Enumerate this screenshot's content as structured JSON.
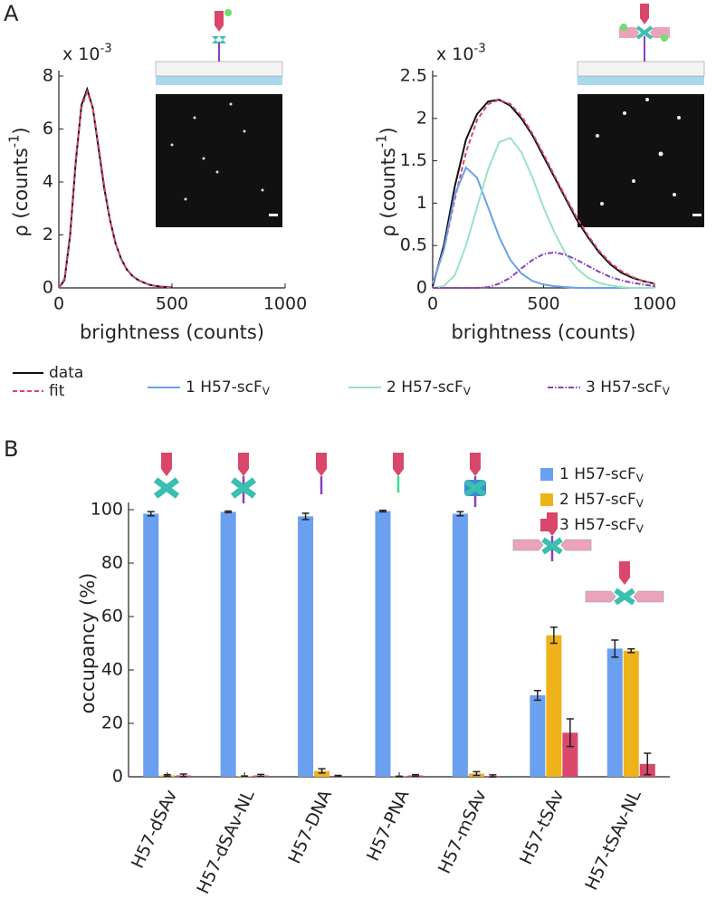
{
  "panel_labels": [
    "A",
    "B"
  ],
  "chart_data": [
    {
      "type": "line",
      "multiplier": "x 10-3",
      "xlabel": "brightness (counts)",
      "ylabel": "ρ (counts-1)",
      "xlim": [
        0,
        1000
      ],
      "xticks": [
        0,
        500,
        1000
      ],
      "ylim": [
        0,
        8
      ],
      "yticks": [
        0,
        2,
        4,
        6,
        8
      ],
      "x": [
        0,
        25,
        50,
        75,
        100,
        125,
        150,
        175,
        200,
        225,
        250,
        275,
        300,
        325,
        350,
        375,
        400,
        425,
        450,
        475,
        500
      ],
      "series": [
        {
          "name": "data",
          "color": "#111111",
          "line_style": "solid",
          "values": [
            0,
            0.3,
            2.0,
            4.8,
            6.9,
            7.5,
            6.8,
            5.3,
            3.8,
            2.6,
            1.7,
            1.1,
            0.7,
            0.45,
            0.3,
            0.2,
            0.12,
            0.08,
            0.05,
            0.03,
            0.02
          ]
        },
        {
          "name": "fit",
          "color": "#d9476b",
          "line_style": "dashed",
          "values": [
            0,
            0.35,
            2.1,
            4.9,
            6.8,
            7.4,
            6.8,
            5.4,
            3.9,
            2.6,
            1.7,
            1.1,
            0.7,
            0.45,
            0.3,
            0.2,
            0.12,
            0.08,
            0.05,
            0.03,
            0.02
          ]
        }
      ]
    },
    {
      "type": "line",
      "multiplier": "x 10-3",
      "xlabel": "brightness (counts)",
      "ylabel": "ρ (counts-1)",
      "xlim": [
        0,
        1000
      ],
      "xticks": [
        0,
        500,
        1000
      ],
      "ylim": [
        0,
        2.5
      ],
      "yticks": [
        0,
        0.5,
        1,
        1.5,
        2,
        2.5
      ],
      "x": [
        0,
        50,
        100,
        150,
        200,
        250,
        300,
        350,
        400,
        450,
        500,
        550,
        600,
        650,
        700,
        750,
        800,
        850,
        900,
        950,
        1000
      ],
      "series": [
        {
          "color": "#111111",
          "line_style": "solid",
          "values": [
            0.02,
            0.5,
            1.2,
            1.75,
            2.05,
            2.2,
            2.22,
            2.15,
            2.0,
            1.8,
            1.55,
            1.3,
            1.05,
            0.8,
            0.6,
            0.42,
            0.28,
            0.18,
            0.12,
            0.08,
            0.05
          ]
        },
        {
          "color": "#d9476b",
          "line_style": "dashed",
          "values": [
            0.05,
            0.45,
            1.05,
            1.6,
            1.98,
            2.17,
            2.22,
            2.17,
            2.03,
            1.82,
            1.58,
            1.32,
            1.07,
            0.83,
            0.62,
            0.44,
            0.3,
            0.2,
            0.13,
            0.08,
            0.05
          ]
        },
        {
          "name": "1 H57-scFV",
          "color": "#6b9ff0",
          "line_style": "solid",
          "values": [
            0.05,
            0.45,
            1.1,
            1.42,
            1.3,
            0.95,
            0.6,
            0.33,
            0.17,
            0.08,
            0.04,
            0.02,
            0.01,
            0,
            0,
            0,
            0,
            0,
            0,
            0,
            0
          ]
        },
        {
          "name": "2 H57-scFV",
          "color": "#98e3c0",
          "line_style": "solid",
          "values": [
            0,
            0.02,
            0.15,
            0.5,
            0.95,
            1.4,
            1.72,
            1.77,
            1.6,
            1.3,
            0.95,
            0.65,
            0.4,
            0.23,
            0.12,
            0.06,
            0.03,
            0.01,
            0,
            0,
            0
          ]
        },
        {
          "name": "3 H57-scFV",
          "color": "#8a3fc4",
          "line_style": "dashdot",
          "values": [
            0,
            0,
            0,
            0,
            0,
            0.01,
            0.05,
            0.12,
            0.23,
            0.33,
            0.4,
            0.42,
            0.39,
            0.33,
            0.26,
            0.19,
            0.13,
            0.09,
            0.06,
            0.04,
            0.02
          ]
        }
      ]
    },
    {
      "type": "bar",
      "ylabel": "occupancy (%)",
      "ylim": [
        0,
        100
      ],
      "yticks": [
        0,
        20,
        40,
        60,
        80,
        100
      ],
      "categories": [
        "H57-dSAv",
        "H57-dSAv-NL",
        "H57-DNA",
        "H57-PNA",
        "H57-mSAv",
        "H57-tSAv",
        "H57-tSAv-NL"
      ],
      "series": [
        {
          "name": "1 H57-scFV",
          "color": "#6b9ff0",
          "values": [
            98.5,
            99.2,
            97.5,
            99.5,
            98.5,
            30.5,
            48
          ],
          "errors": [
            0.8,
            0.3,
            1.2,
            0.3,
            0.8,
            1.8,
            3.2
          ]
        },
        {
          "name": "2 H57-scFV",
          "color": "#f0b21a",
          "values": [
            0.5,
            0.2,
            2.2,
            0.1,
            1.2,
            53,
            47.2
          ],
          "errors": [
            0.3,
            0.1,
            0.8,
            0.1,
            0.7,
            3.0,
            0.7
          ]
        },
        {
          "name": "3 H57-scFV",
          "color": "#d9476b",
          "values": [
            0.5,
            0.5,
            0.3,
            0.5,
            0.3,
            16.5,
            4.8
          ],
          "errors": [
            0.5,
            0.4,
            0.2,
            0.3,
            0.4,
            5.2,
            4.0
          ]
        }
      ]
    }
  ]
}
